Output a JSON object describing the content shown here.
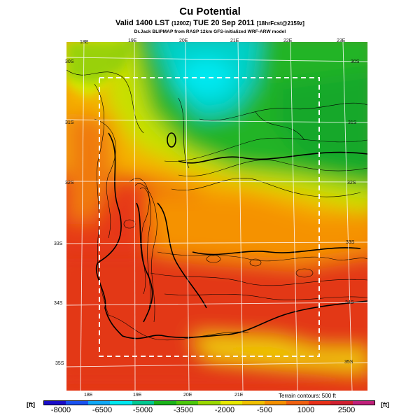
{
  "header": {
    "title": "Cu Potential",
    "subtitle_main": "Valid 1400 LST ",
    "subtitle_utc": "(1200Z)",
    "subtitle_date": " TUE 20 Sep 2011 ",
    "subtitle_fcst": "[18hrFcst@2159z]",
    "credit": "Dr.Jack BLIPMAP from RASP 12km GFS-initialized WRF-ARW model"
  },
  "map": {
    "top_lon_labels": [
      "18E",
      "19E",
      "20E",
      "21E",
      "22E",
      "23E"
    ],
    "bottom_lon_labels": [
      "18E",
      "19E",
      "20E",
      "21E"
    ],
    "left_lat_labels": [
      "30S",
      "31S",
      "32S",
      "33S",
      "34S",
      "35S"
    ],
    "right_lat_labels": [
      "30S",
      "31S",
      "32S",
      "33S",
      "34S",
      "35S"
    ],
    "terrain_note": "Terrain contours: 500 ft"
  },
  "colorbar": {
    "unit": "[ft]",
    "ticks": [
      "-8000",
      "-6500",
      "-5000",
      "-3500",
      "-2000",
      "-500",
      "1000",
      "2500"
    ],
    "colors": [
      "#1a0dc8",
      "#1a52f0",
      "#10a8f5",
      "#00e8f0",
      "#00c890",
      "#1ab41a",
      "#4cc80a",
      "#9ad800",
      "#e8e800",
      "#f0c000",
      "#f59000",
      "#f06010",
      "#e83018",
      "#d02030",
      "#c0207a"
    ]
  }
}
